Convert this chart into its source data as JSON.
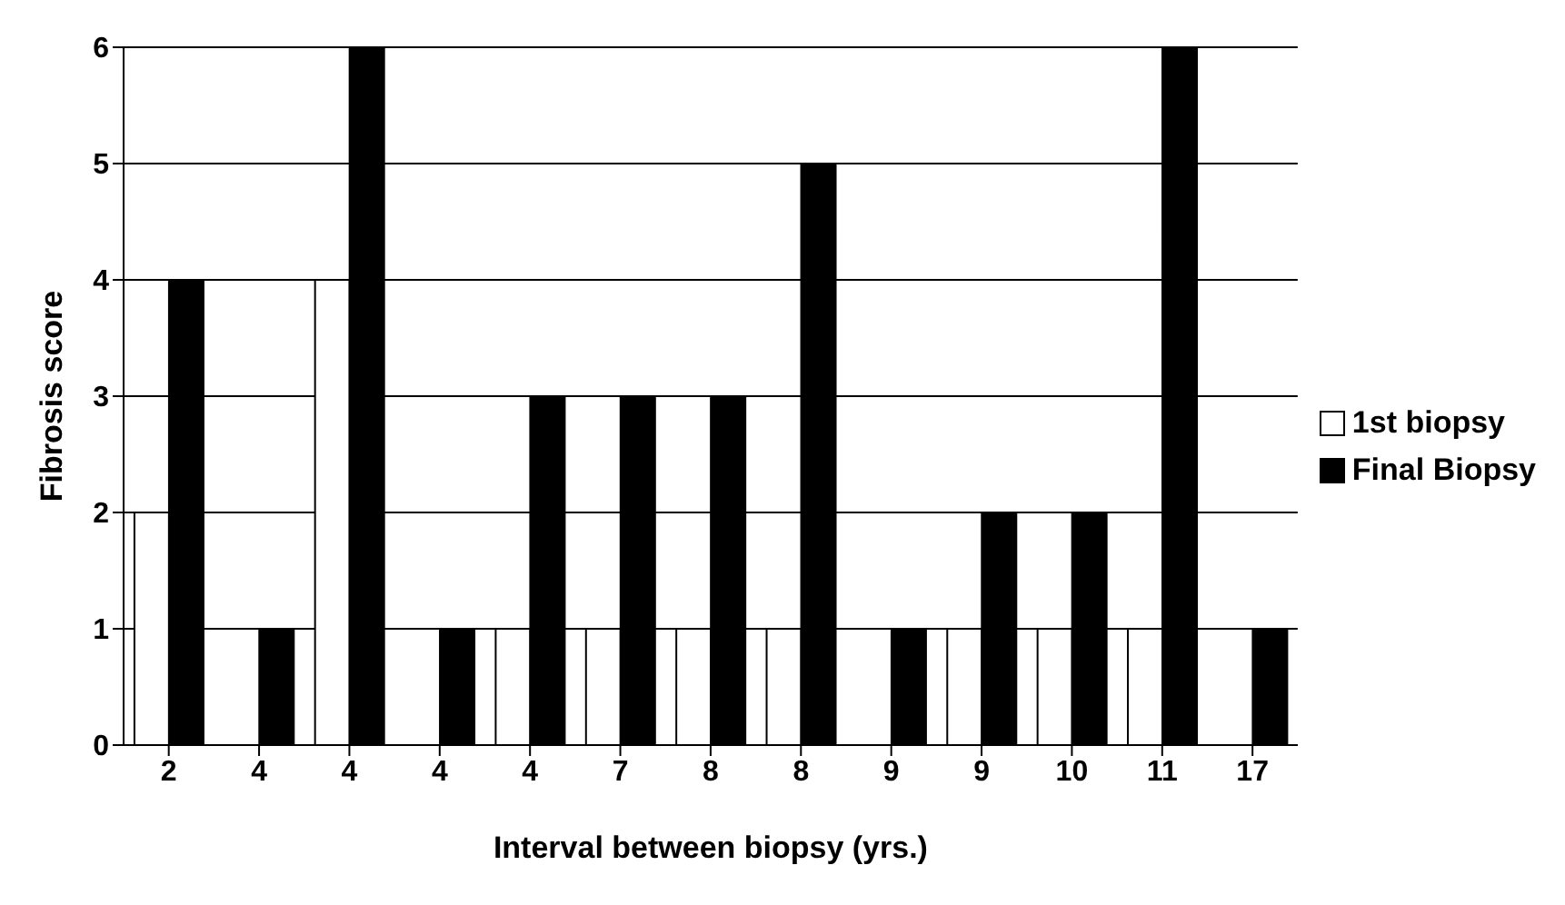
{
  "chart_data": {
    "type": "bar",
    "xlabel": "Interval between biopsy (yrs.)",
    "ylabel": "Fibrosis score",
    "categories": [
      "2",
      "4",
      "4",
      "4",
      "4",
      "7",
      "8",
      "8",
      "9",
      "9",
      "10",
      "11",
      "17"
    ],
    "series": [
      {
        "name": "1st biopsy",
        "color": "#ffffff",
        "values": [
          2,
          0,
          4,
          0,
          1,
          1,
          1,
          1,
          0,
          1,
          1,
          1,
          0
        ]
      },
      {
        "name": "Final Biopsy",
        "color": "#000000",
        "values": [
          4,
          1,
          6,
          1,
          3,
          3,
          3,
          5,
          1,
          2,
          2,
          6,
          1
        ]
      }
    ],
    "ylim": [
      0,
      6
    ],
    "yticks": [
      0,
      1,
      2,
      3,
      4,
      5,
      6
    ],
    "grid": "y",
    "legend": "right"
  }
}
